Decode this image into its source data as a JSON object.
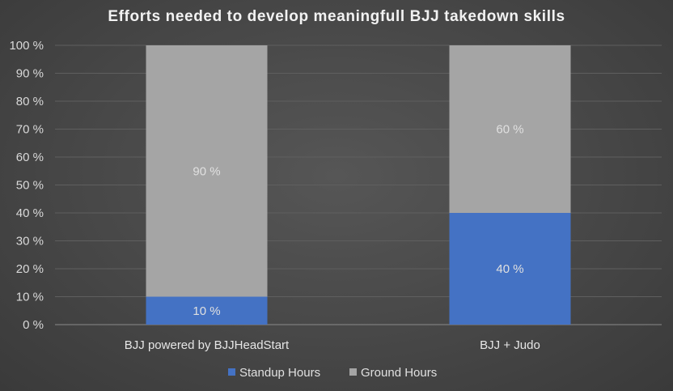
{
  "title": "Efforts needed to develop meaningfull BJJ takedown skills",
  "chart_data": {
    "type": "bar",
    "stacked": true,
    "title": "Efforts needed to develop meaningfull BJJ takedown skills",
    "categories": [
      "BJJ powered by BJJHeadStart",
      "BJJ + Judo"
    ],
    "series": [
      {
        "name": "Standup Hours",
        "values": [
          10,
          40
        ],
        "labels": [
          "10 %",
          "40 %"
        ],
        "color": "#4472c4"
      },
      {
        "name": "Ground Hours",
        "values": [
          90,
          60
        ],
        "labels": [
          "90 %",
          "60 %"
        ],
        "color": "#a5a5a5"
      }
    ],
    "yticks": [
      "0 %",
      "10 %",
      "20 %",
      "30 %",
      "40 %",
      "50 %",
      "60 %",
      "70 %",
      "80 %",
      "90 %",
      "100 %"
    ],
    "ylim": [
      0,
      100
    ],
    "grid": true,
    "legend_position": "bottom"
  }
}
